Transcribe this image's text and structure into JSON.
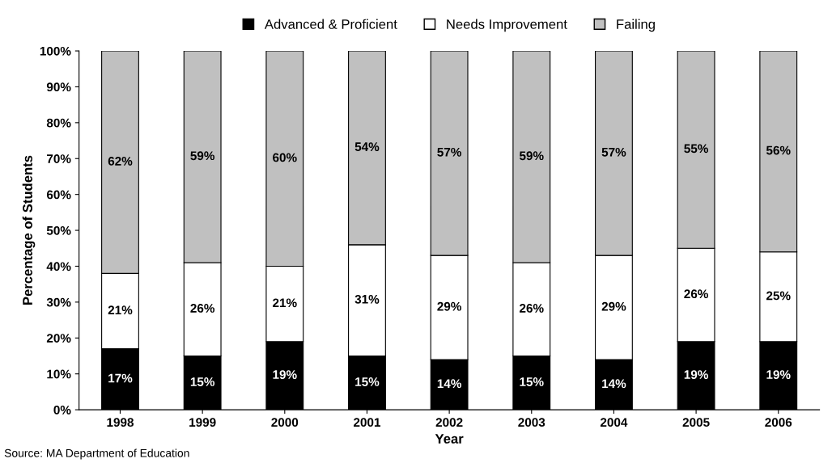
{
  "chart_data": {
    "type": "bar",
    "stacked": true,
    "xlabel": "Year",
    "ylabel": "Percentage of Students",
    "categories": [
      "1998",
      "1999",
      "2000",
      "2001",
      "2002",
      "2003",
      "2004",
      "2005",
      "2006"
    ],
    "series": [
      {
        "name": "Advanced & Proficient",
        "color": "#000000",
        "values": [
          17,
          15,
          19,
          15,
          14,
          15,
          14,
          19,
          19
        ],
        "value_labels": [
          "17%",
          "15%",
          "19%",
          "15%",
          "14%",
          "15%",
          "14%",
          "19%",
          "19%"
        ]
      },
      {
        "name": "Needs Improvement",
        "color": "#ffffff",
        "values": [
          21,
          26,
          21,
          31,
          29,
          26,
          29,
          26,
          25
        ],
        "value_labels": [
          "21%",
          "26%",
          "21%",
          "31%",
          "29%",
          "26%",
          "29%",
          "26%",
          "25%"
        ]
      },
      {
        "name": "Failing",
        "color": "#c0c0c0",
        "values": [
          62,
          59,
          60,
          54,
          57,
          59,
          57,
          55,
          56
        ],
        "value_labels": [
          "62%",
          "59%",
          "60%",
          "54%",
          "57%",
          "59%",
          "57%",
          "55%",
          "56%"
        ]
      }
    ],
    "ylim": [
      0,
      100
    ],
    "yticks": [
      {
        "value": 0,
        "label": "0%"
      },
      {
        "value": 10,
        "label": "10%"
      },
      {
        "value": 20,
        "label": "20%"
      },
      {
        "value": 30,
        "label": "30%"
      },
      {
        "value": 40,
        "label": "40%"
      },
      {
        "value": 50,
        "label": "50%"
      },
      {
        "value": 60,
        "label": "60%"
      },
      {
        "value": 70,
        "label": "70%"
      },
      {
        "value": 80,
        "label": "80%"
      },
      {
        "value": 90,
        "label": "90%"
      },
      {
        "value": 100,
        "label": "100%"
      }
    ],
    "grid": false,
    "legend": "top",
    "annotations": [
      "Source: MA Department of Education"
    ]
  }
}
